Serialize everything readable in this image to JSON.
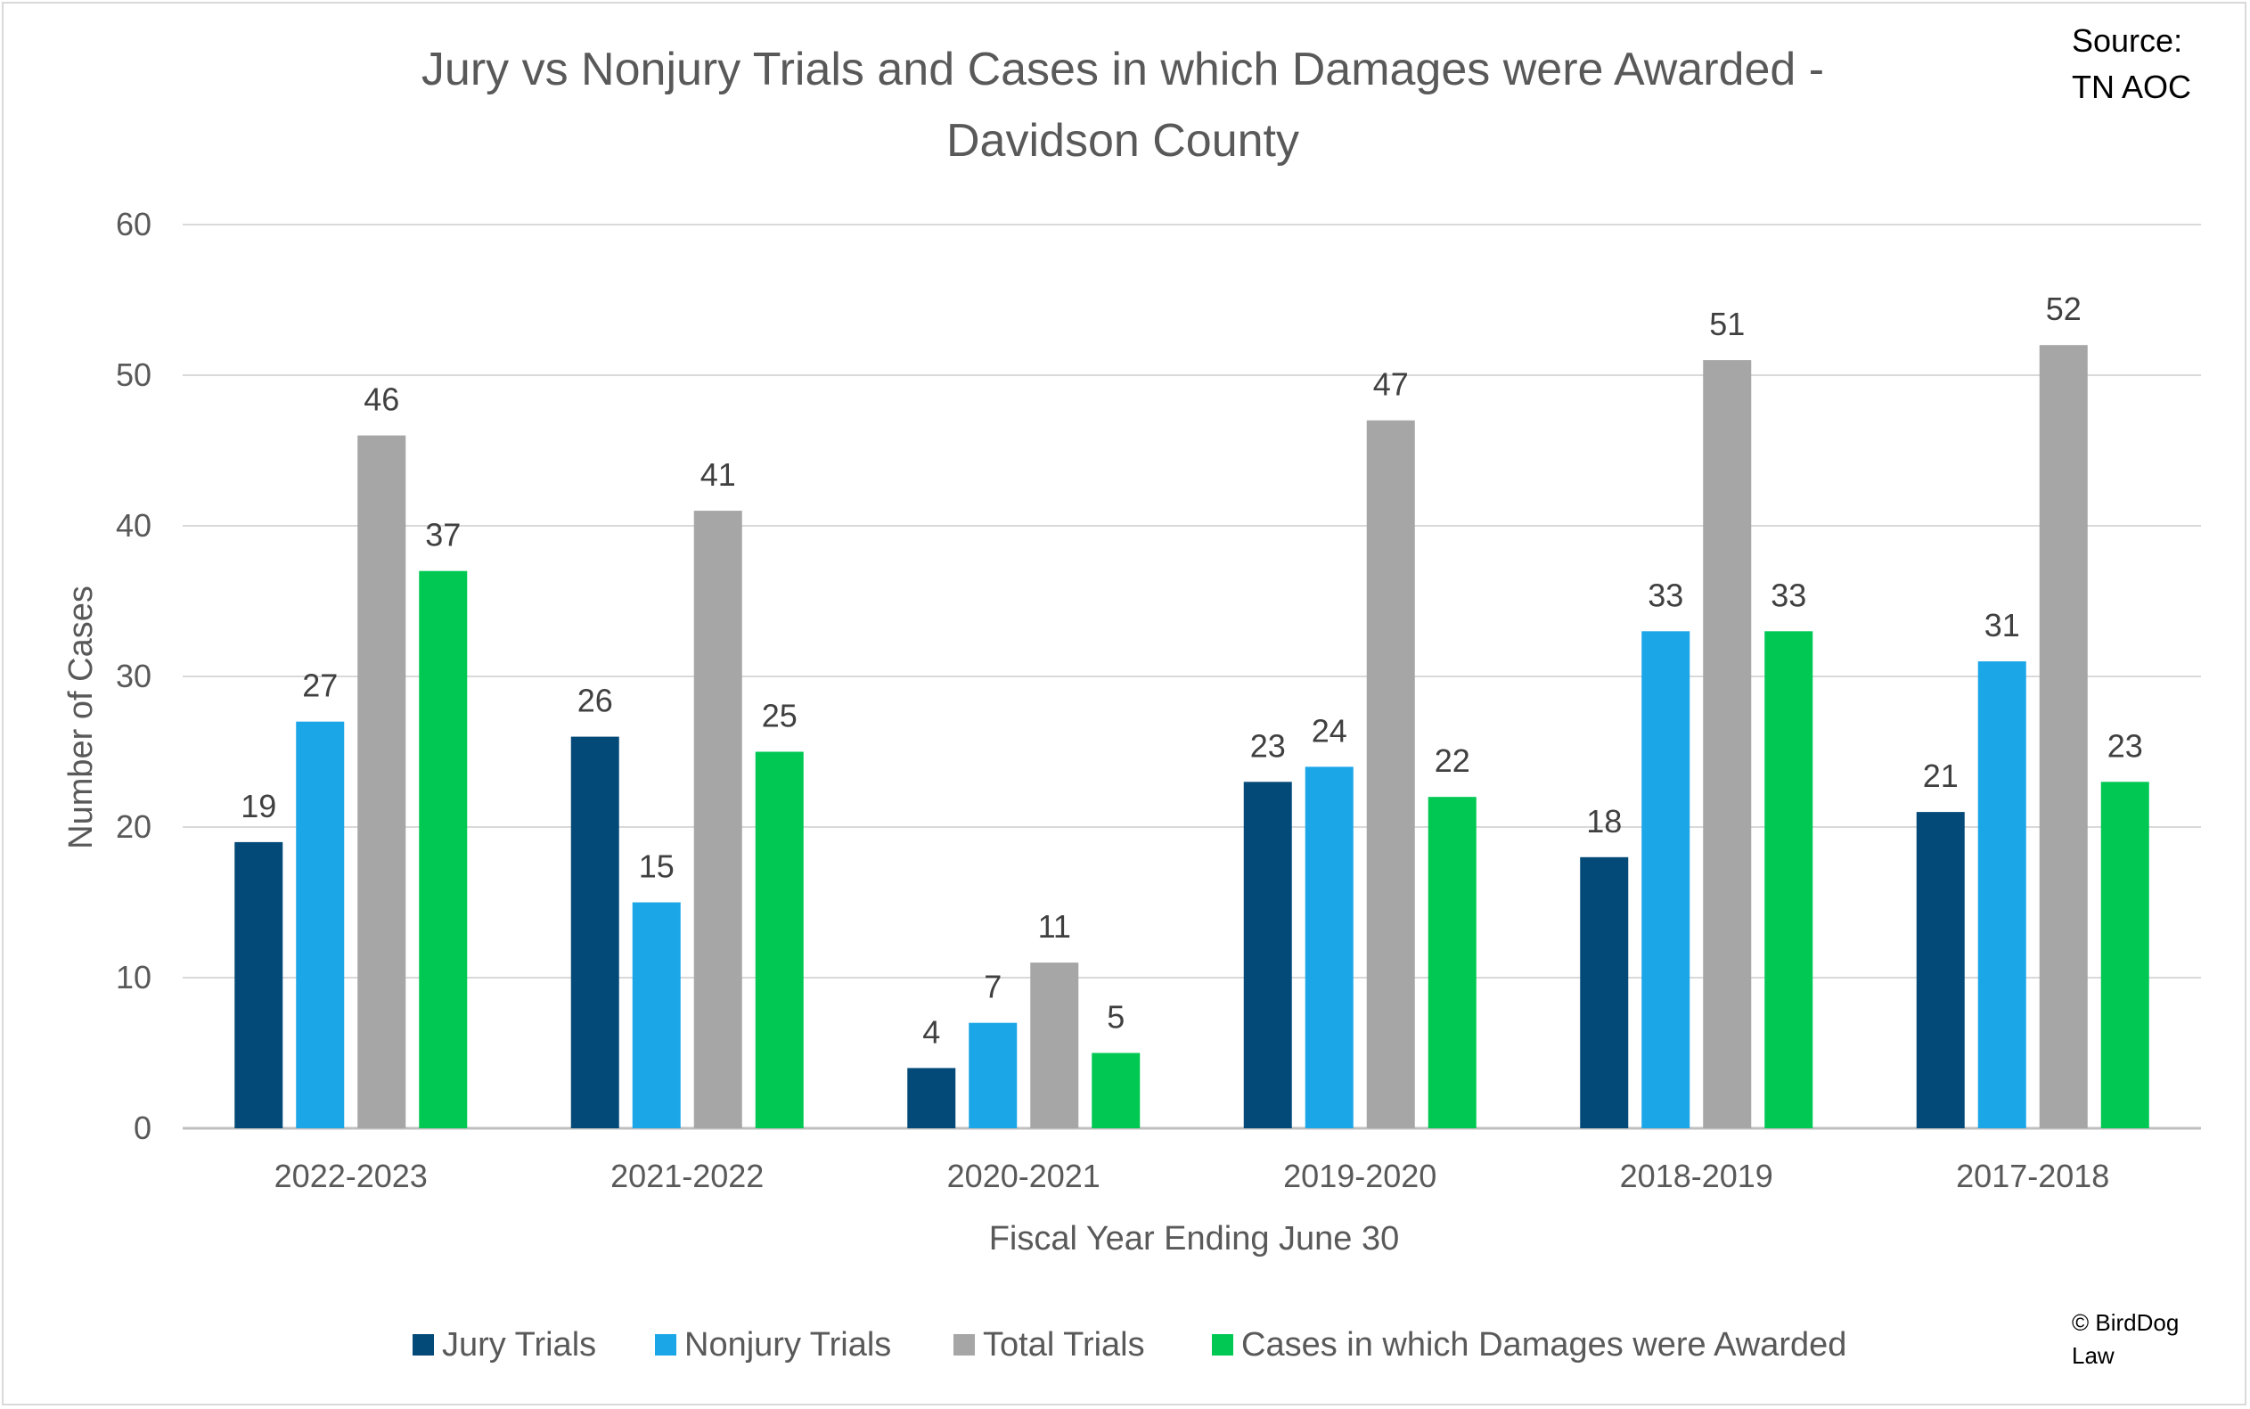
{
  "chart_data": {
    "type": "bar",
    "title_line1": "Jury vs Nonjury Trials and Cases in which Damages were Awarded  -",
    "title_line2": "Davidson County",
    "source_line1": "Source:",
    "source_line2": "TN AOC",
    "xlabel": "Fiscal Year Ending June 30",
    "ylabel": "Number of Cases",
    "ylim": [
      0,
      60
    ],
    "yticks": [
      "0",
      "10",
      "20",
      "30",
      "40",
      "50",
      "60"
    ],
    "grid": true,
    "legend_position": "bottom",
    "categories": [
      "2022-2023",
      "2021-2022",
      "2020-2021",
      "2019-2020",
      "2018-2019",
      "2017-2018"
    ],
    "series": [
      {
        "name": "Jury Trials",
        "color": "#044a78",
        "values": [
          19,
          26,
          4,
          23,
          18,
          21
        ]
      },
      {
        "name": "Nonjury Trials",
        "color": "#1ba6e8",
        "values": [
          27,
          15,
          7,
          24,
          33,
          31
        ]
      },
      {
        "name": "Total Trials",
        "color": "#a6a6a6",
        "values": [
          46,
          41,
          11,
          47,
          51,
          52
        ]
      },
      {
        "name": "Cases in which Damages were Awarded",
        "color": "#00c853",
        "values": [
          37,
          25,
          5,
          22,
          33,
          23
        ]
      }
    ],
    "copyright_line1": "© BirdDog",
    "copyright_line2": "Law"
  }
}
